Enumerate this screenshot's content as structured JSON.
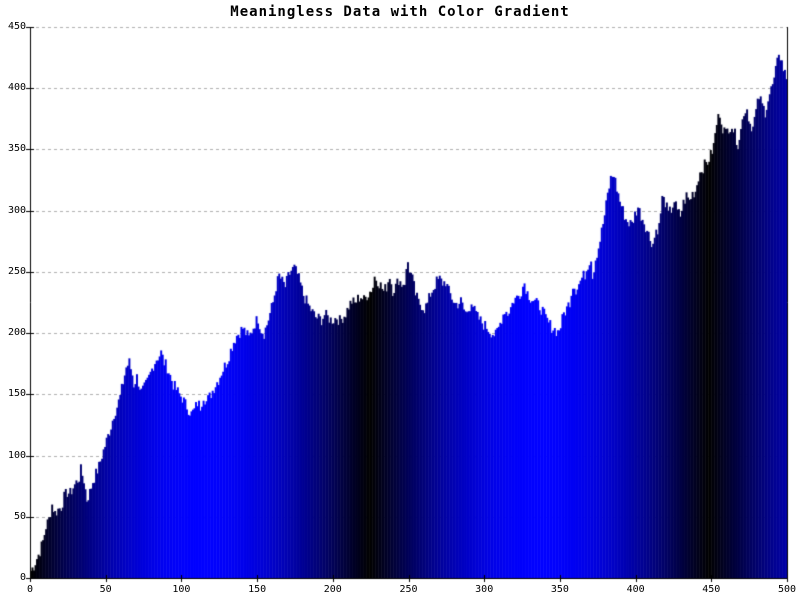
{
  "chart_data": {
    "type": "bar",
    "title": "Meaningless Data with Color Gradient",
    "xlabel": "",
    "ylabel": "",
    "x_range": [
      0,
      500
    ],
    "y_range": [
      0,
      450
    ],
    "x_ticks": [
      0,
      50,
      100,
      150,
      200,
      250,
      300,
      350,
      400,
      450,
      500
    ],
    "y_ticks": [
      0,
      50,
      100,
      150,
      200,
      250,
      300,
      350,
      400,
      450
    ],
    "grid": "horizontal-dashed",
    "legend": "none",
    "n_points": 500,
    "bar_gradient": {
      "description": "each bar filled rgb(0,0,255*|sin(pi*x/period)|): black at x=0,224,448; pure blue at x=112,336",
      "period": 224,
      "peak_color": "#0000ff",
      "trough_color": "#000000"
    },
    "noise_amplitude": 10,
    "noise_seed": 7,
    "colors": {
      "axis": "#000000",
      "grid": "#b0b0b0",
      "background": "#ffffff"
    },
    "series_keypoints": [
      [
        0,
        6
      ],
      [
        2,
        10
      ],
      [
        4,
        16
      ],
      [
        6,
        22
      ],
      [
        8,
        30
      ],
      [
        10,
        42
      ],
      [
        12,
        48
      ],
      [
        14,
        60
      ],
      [
        16,
        53
      ],
      [
        18,
        56
      ],
      [
        20,
        58
      ],
      [
        22,
        66
      ],
      [
        24,
        70
      ],
      [
        26,
        69
      ],
      [
        28,
        74
      ],
      [
        30,
        78
      ],
      [
        32,
        82
      ],
      [
        33,
        88
      ],
      [
        35,
        80
      ],
      [
        37,
        64
      ],
      [
        39,
        70
      ],
      [
        41,
        79
      ],
      [
        43,
        85
      ],
      [
        45,
        91
      ],
      [
        47,
        100
      ],
      [
        49,
        108
      ],
      [
        51,
        116
      ],
      [
        53,
        124
      ],
      [
        55,
        134
      ],
      [
        57,
        140
      ],
      [
        59,
        148
      ],
      [
        61,
        160
      ],
      [
        63,
        172
      ],
      [
        65,
        176
      ],
      [
        67,
        166
      ],
      [
        68,
        158
      ],
      [
        70,
        164
      ],
      [
        72,
        156
      ],
      [
        73,
        152
      ],
      [
        75,
        155
      ],
      [
        77,
        160
      ],
      [
        79,
        167
      ],
      [
        81,
        174
      ],
      [
        83,
        179
      ],
      [
        85,
        182
      ],
      [
        86,
        184
      ],
      [
        88,
        176
      ],
      [
        90,
        172
      ],
      [
        92,
        165
      ],
      [
        94,
        158
      ],
      [
        96,
        154
      ],
      [
        98,
        150
      ],
      [
        100,
        147
      ],
      [
        102,
        142
      ],
      [
        104,
        138
      ],
      [
        106,
        134
      ],
      [
        108,
        137
      ],
      [
        110,
        143
      ],
      [
        112,
        140
      ],
      [
        114,
        149
      ],
      [
        116,
        144
      ],
      [
        118,
        148
      ],
      [
        120,
        153
      ],
      [
        122,
        158
      ],
      [
        124,
        162
      ],
      [
        126,
        168
      ],
      [
        128,
        173
      ],
      [
        130,
        178
      ],
      [
        132,
        186
      ],
      [
        134,
        193
      ],
      [
        136,
        198
      ],
      [
        138,
        201
      ],
      [
        140,
        204
      ],
      [
        142,
        200
      ],
      [
        144,
        196
      ],
      [
        146,
        202
      ],
      [
        148,
        208
      ],
      [
        150,
        212
      ],
      [
        152,
        203
      ],
      [
        154,
        200
      ],
      [
        156,
        207
      ],
      [
        158,
        216
      ],
      [
        160,
        225
      ],
      [
        162,
        238
      ],
      [
        164,
        247
      ],
      [
        166,
        242
      ],
      [
        168,
        238
      ],
      [
        170,
        246
      ],
      [
        172,
        251
      ],
      [
        174,
        253
      ],
      [
        176,
        248
      ],
      [
        178,
        240
      ],
      [
        180,
        231
      ],
      [
        182,
        226
      ],
      [
        184,
        221
      ],
      [
        186,
        217
      ],
      [
        188,
        213
      ],
      [
        190,
        212
      ],
      [
        192,
        211
      ],
      [
        194,
        215
      ],
      [
        196,
        213
      ],
      [
        198,
        211
      ],
      [
        200,
        211
      ],
      [
        202,
        213
      ],
      [
        204,
        210
      ],
      [
        206,
        213
      ],
      [
        208,
        216
      ],
      [
        210,
        222
      ],
      [
        212,
        226
      ],
      [
        214,
        224
      ],
      [
        216,
        228
      ],
      [
        218,
        230
      ],
      [
        220,
        227
      ],
      [
        222,
        231
      ],
      [
        224,
        234
      ],
      [
        226,
        238
      ],
      [
        227,
        246
      ],
      [
        229,
        243
      ],
      [
        231,
        239
      ],
      [
        233,
        234
      ],
      [
        235,
        238
      ],
      [
        237,
        247
      ],
      [
        239,
        235
      ],
      [
        241,
        238
      ],
      [
        243,
        244
      ],
      [
        245,
        240
      ],
      [
        247,
        242
      ],
      [
        249,
        258
      ],
      [
        250,
        252
      ],
      [
        252,
        244
      ],
      [
        254,
        232
      ],
      [
        256,
        225
      ],
      [
        258,
        223
      ],
      [
        260,
        220
      ],
      [
        262,
        224
      ],
      [
        264,
        232
      ],
      [
        266,
        237
      ],
      [
        268,
        242
      ],
      [
        270,
        244
      ],
      [
        272,
        241
      ],
      [
        274,
        242
      ],
      [
        276,
        234
      ],
      [
        278,
        229
      ],
      [
        280,
        224
      ],
      [
        282,
        224
      ],
      [
        284,
        226
      ],
      [
        286,
        219
      ],
      [
        288,
        216
      ],
      [
        290,
        222
      ],
      [
        291,
        227
      ],
      [
        293,
        218
      ],
      [
        295,
        213
      ],
      [
        297,
        210
      ],
      [
        299,
        207
      ],
      [
        301,
        205
      ],
      [
        303,
        202
      ],
      [
        305,
        200
      ],
      [
        307,
        198
      ],
      [
        309,
        204
      ],
      [
        311,
        212
      ],
      [
        313,
        219
      ],
      [
        315,
        216
      ],
      [
        317,
        221
      ],
      [
        319,
        227
      ],
      [
        321,
        229
      ],
      [
        323,
        232
      ],
      [
        325,
        238
      ],
      [
        326,
        241
      ],
      [
        328,
        233
      ],
      [
        330,
        229
      ],
      [
        332,
        227
      ],
      [
        334,
        224
      ],
      [
        336,
        222
      ],
      [
        338,
        218
      ],
      [
        340,
        212
      ],
      [
        342,
        208
      ],
      [
        344,
        205
      ],
      [
        346,
        203
      ],
      [
        348,
        201
      ],
      [
        350,
        206
      ],
      [
        352,
        216
      ],
      [
        354,
        220
      ],
      [
        356,
        226
      ],
      [
        358,
        240
      ],
      [
        360,
        236
      ],
      [
        362,
        240
      ],
      [
        364,
        245
      ],
      [
        366,
        248
      ],
      [
        368,
        256
      ],
      [
        370,
        262
      ],
      [
        371,
        246
      ],
      [
        373,
        261
      ],
      [
        375,
        270
      ],
      [
        377,
        283
      ],
      [
        379,
        296
      ],
      [
        381,
        313
      ],
      [
        383,
        326
      ],
      [
        385,
        330
      ],
      [
        387,
        318
      ],
      [
        389,
        308
      ],
      [
        391,
        300
      ],
      [
        393,
        293
      ],
      [
        395,
        290
      ],
      [
        397,
        289
      ],
      [
        399,
        297
      ],
      [
        401,
        303
      ],
      [
        403,
        296
      ],
      [
        405,
        291
      ],
      [
        407,
        284
      ],
      [
        409,
        277
      ],
      [
        411,
        273
      ],
      [
        413,
        284
      ],
      [
        415,
        287
      ],
      [
        417,
        310
      ],
      [
        419,
        307
      ],
      [
        421,
        297
      ],
      [
        423,
        301
      ],
      [
        425,
        308
      ],
      [
        427,
        299
      ],
      [
        429,
        296
      ],
      [
        431,
        306
      ],
      [
        433,
        312
      ],
      [
        435,
        308
      ],
      [
        437,
        314
      ],
      [
        439,
        316
      ],
      [
        441,
        328
      ],
      [
        443,
        334
      ],
      [
        445,
        337
      ],
      [
        447,
        340
      ],
      [
        449,
        345
      ],
      [
        451,
        353
      ],
      [
        453,
        371
      ],
      [
        455,
        380
      ],
      [
        457,
        368
      ],
      [
        459,
        363
      ],
      [
        461,
        368
      ],
      [
        463,
        370
      ],
      [
        465,
        362
      ],
      [
        467,
        355
      ],
      [
        469,
        366
      ],
      [
        471,
        381
      ],
      [
        473,
        383
      ],
      [
        475,
        371
      ],
      [
        477,
        368
      ],
      [
        479,
        381
      ],
      [
        481,
        393
      ],
      [
        483,
        386
      ],
      [
        485,
        381
      ],
      [
        487,
        391
      ],
      [
        489,
        399
      ],
      [
        491,
        406
      ],
      [
        493,
        421
      ],
      [
        494,
        430
      ],
      [
        495,
        426
      ],
      [
        496,
        421
      ],
      [
        497,
        416
      ],
      [
        498,
        412
      ],
      [
        499,
        409
      ]
    ]
  }
}
